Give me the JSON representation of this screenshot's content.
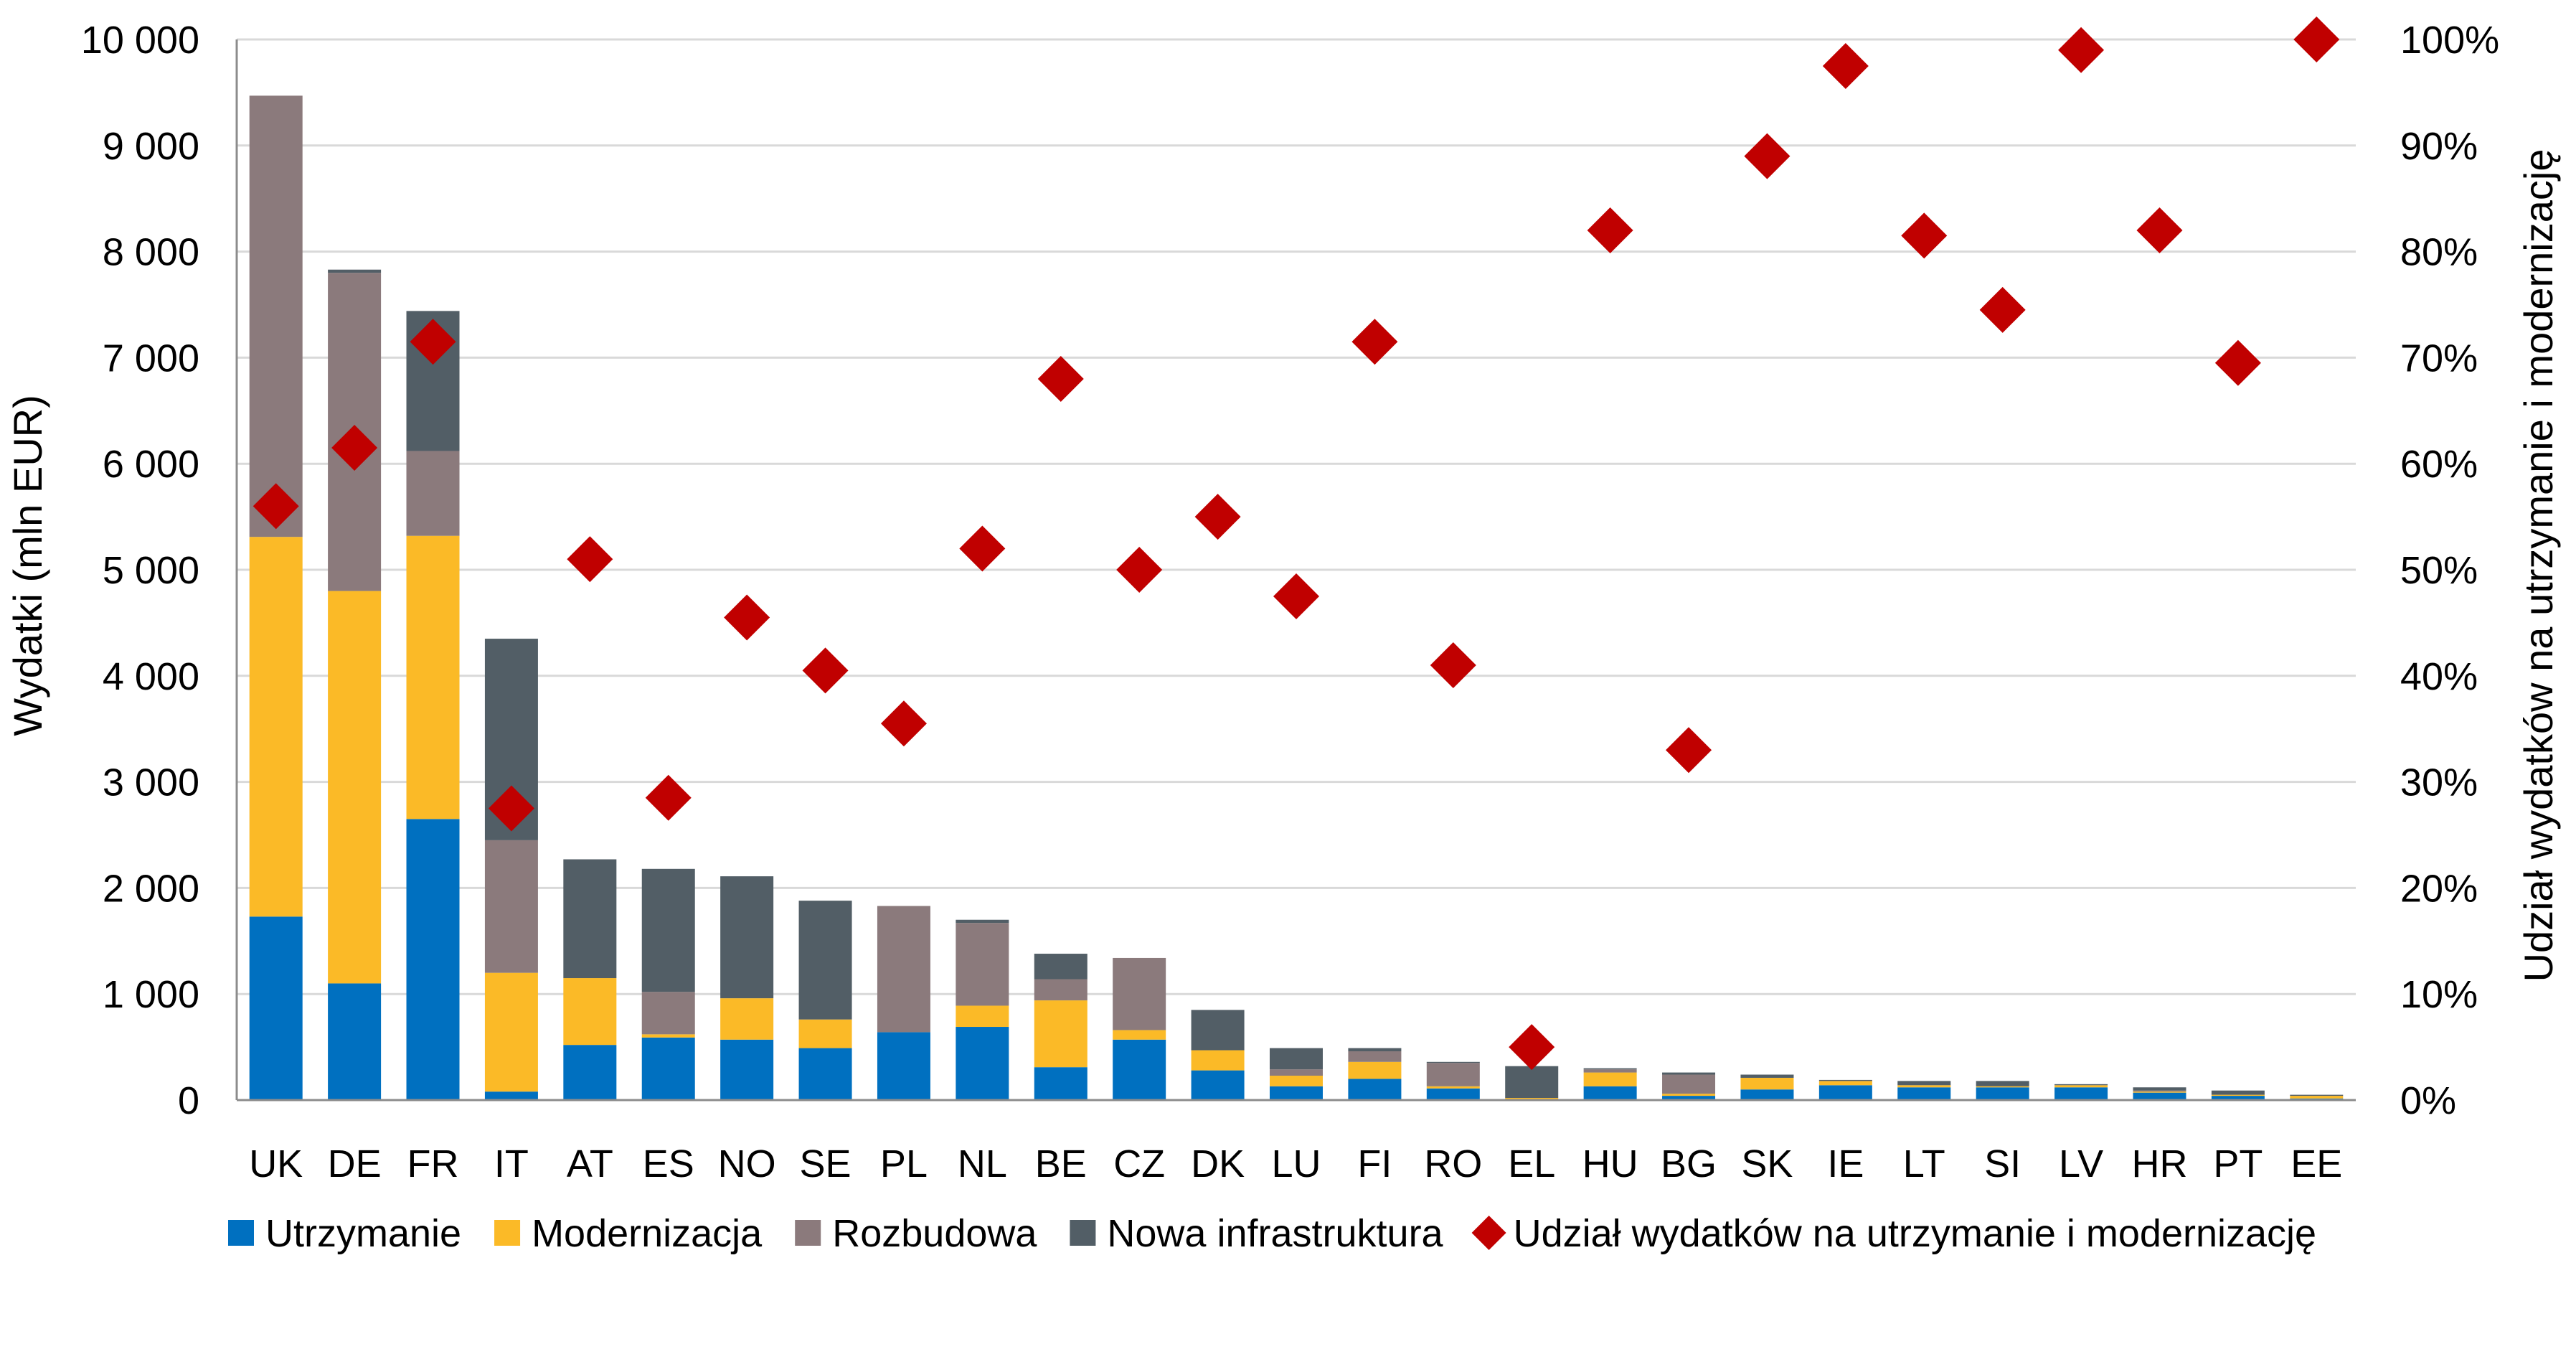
{
  "chart_data": {
    "type": "bar",
    "stacked": true,
    "categories": [
      "UK",
      "DE",
      "FR",
      "IT",
      "AT",
      "ES",
      "NO",
      "SE",
      "PL",
      "NL",
      "BE",
      "CZ",
      "DK",
      "LU",
      "FI",
      "RO",
      "EL",
      "HU",
      "BG",
      "SK",
      "IE",
      "LT",
      "SI",
      "LV",
      "HR",
      "PT",
      "EE"
    ],
    "series": [
      {
        "name": "Utrzymanie",
        "color": "#0070C0",
        "values": [
          1730,
          1100,
          2650,
          80,
          520,
          590,
          570,
          490,
          640,
          690,
          310,
          570,
          280,
          130,
          200,
          110,
          10,
          130,
          40,
          100,
          140,
          120,
          120,
          120,
          70,
          40,
          15
        ]
      },
      {
        "name": "Modernizacja",
        "color": "#FBBA27",
        "values": [
          3580,
          3700,
          2670,
          1120,
          630,
          30,
          390,
          270,
          0,
          200,
          630,
          90,
          190,
          100,
          160,
          20,
          10,
          130,
          20,
          110,
          40,
          20,
          10,
          20,
          10,
          10,
          25
        ]
      },
      {
        "name": "Rozbudowa",
        "color": "#8B7A7C",
        "values": [
          4160,
          3000,
          800,
          1250,
          0,
          400,
          0,
          0,
          1190,
          780,
          200,
          680,
          0,
          60,
          100,
          220,
          0,
          30,
          180,
          0,
          0,
          0,
          0,
          0,
          10,
          0,
          0
        ]
      },
      {
        "name": "Nowa infrastruktura",
        "color": "#525E66",
        "values": [
          0,
          30,
          1320,
          1900,
          1120,
          1160,
          1150,
          1120,
          0,
          30,
          240,
          0,
          380,
          200,
          30,
          10,
          300,
          10,
          20,
          30,
          10,
          40,
          50,
          10,
          30,
          40,
          10
        ]
      }
    ],
    "line_series": {
      "name": "Udział wydatków na utrzymanie i modernizację",
      "color": "#C00000",
      "marker": "diamond",
      "axis": "right",
      "values": [
        56,
        61.5,
        71.5,
        27.5,
        51,
        28.5,
        45.5,
        40.5,
        35.5,
        52,
        68,
        50,
        55,
        47.5,
        71.5,
        41,
        5,
        82,
        33,
        89,
        97.5,
        81.5,
        74.5,
        99,
        82,
        69.5,
        100
      ]
    },
    "ylabel": "Wydatki (mln EUR)",
    "ylim": [
      0,
      10000
    ],
    "yticks": [
      "0",
      "1 000",
      "2 000",
      "3 000",
      "4 000",
      "5 000",
      "6 000",
      "7 000",
      "8 000",
      "9 000",
      "10 000"
    ],
    "y2label": "Udział wydatków na utrzymanie i modernizację",
    "y2lim": [
      0,
      100
    ],
    "y2ticks": [
      "0%",
      "10%",
      "20%",
      "30%",
      "40%",
      "50%",
      "60%",
      "70%",
      "80%",
      "90%",
      "100%"
    ],
    "grid": true,
    "legend": "bottom"
  }
}
